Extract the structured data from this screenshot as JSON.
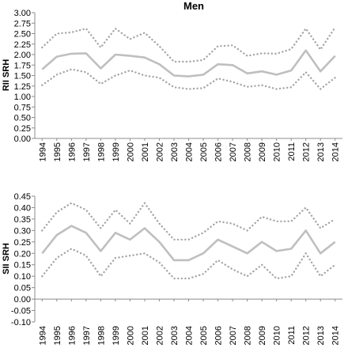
{
  "chart_data": [
    {
      "type": "line",
      "title": "Men",
      "ylabel": "RII SRH",
      "xlabel": "",
      "ylim": [
        0,
        3
      ],
      "yticks": [
        "0.00",
        "0.25",
        "0.50",
        "0.75",
        "1.00",
        "1.25",
        "1.50",
        "1.75",
        "2.00",
        "2.25",
        "2.50",
        "2.75",
        "3.00"
      ],
      "grid": false,
      "legend": "none",
      "x": [
        "1994",
        "1995",
        "1996",
        "1997",
        "1998",
        "1999",
        "2000",
        "2001",
        "2002",
        "2003",
        "2004",
        "2005",
        "2006",
        "2007",
        "2008",
        "2009",
        "2010",
        "2011",
        "2012",
        "2013",
        "2014"
      ],
      "series": [
        {
          "style": "solid",
          "color": "#bfbfbf",
          "values": [
            1.65,
            1.95,
            2.02,
            2.03,
            1.67,
            2.0,
            1.97,
            1.93,
            1.77,
            1.5,
            1.48,
            1.52,
            1.77,
            1.75,
            1.55,
            1.6,
            1.52,
            1.62,
            2.1,
            1.6,
            1.97
          ]
        },
        {
          "style": "dotted-upper",
          "color": "#a6a6a6",
          "values": [
            2.17,
            2.5,
            2.53,
            2.62,
            2.17,
            2.62,
            2.37,
            2.52,
            2.2,
            1.83,
            1.83,
            1.87,
            2.2,
            2.22,
            1.97,
            2.03,
            2.02,
            2.13,
            2.62,
            2.12,
            2.65
          ]
        },
        {
          "style": "dotted-lower",
          "color": "#a6a6a6",
          "values": [
            1.27,
            1.52,
            1.65,
            1.58,
            1.3,
            1.5,
            1.62,
            1.5,
            1.45,
            1.22,
            1.18,
            1.2,
            1.43,
            1.35,
            1.23,
            1.27,
            1.18,
            1.22,
            1.58,
            1.18,
            1.45
          ]
        }
      ]
    },
    {
      "type": "line",
      "title": "",
      "ylabel": "SII SRH",
      "xlabel": "",
      "ylim": [
        -0.1,
        0.45
      ],
      "yticks": [
        "-0.10",
        "-0.05",
        "0.00",
        "0.05",
        "0.10",
        "0.15",
        "0.20",
        "0.25",
        "0.30",
        "0.35",
        "0.40",
        "0.45"
      ],
      "grid": false,
      "legend": "none",
      "x": [
        "1994",
        "1995",
        "1996",
        "1997",
        "1998",
        "1999",
        "2000",
        "2001",
        "2002",
        "2003",
        "2004",
        "2005",
        "2006",
        "2007",
        "2008",
        "2009",
        "2010",
        "2011",
        "2012",
        "2013",
        "2014"
      ],
      "series": [
        {
          "style": "solid",
          "color": "#bfbfbf",
          "values": [
            0.2,
            0.28,
            0.32,
            0.29,
            0.21,
            0.29,
            0.26,
            0.31,
            0.25,
            0.17,
            0.17,
            0.2,
            0.26,
            0.23,
            0.2,
            0.25,
            0.21,
            0.22,
            0.3,
            0.2,
            0.25
          ]
        },
        {
          "style": "dotted-upper",
          "color": "#a6a6a6",
          "values": [
            0.3,
            0.38,
            0.42,
            0.39,
            0.31,
            0.39,
            0.33,
            0.42,
            0.33,
            0.26,
            0.26,
            0.29,
            0.34,
            0.33,
            0.3,
            0.36,
            0.34,
            0.34,
            0.4,
            0.31,
            0.35
          ]
        },
        {
          "style": "dotted-lower",
          "color": "#a6a6a6",
          "values": [
            0.1,
            0.18,
            0.22,
            0.19,
            0.1,
            0.18,
            0.19,
            0.2,
            0.16,
            0.09,
            0.09,
            0.11,
            0.17,
            0.13,
            0.1,
            0.15,
            0.09,
            0.1,
            0.2,
            0.1,
            0.15
          ]
        }
      ]
    }
  ]
}
